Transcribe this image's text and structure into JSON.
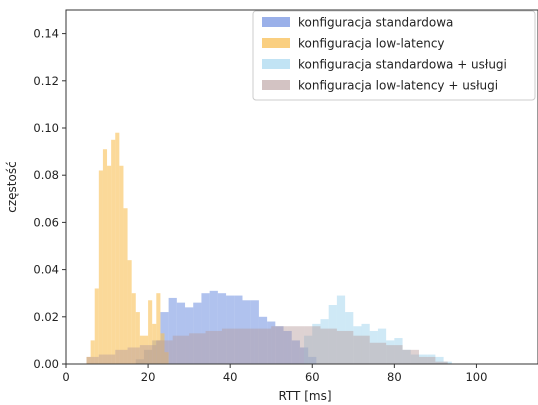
{
  "chart_data": {
    "type": "bar",
    "subtype": "histogram-overlay",
    "title": "",
    "xlabel": "RTT [ms]",
    "ylabel": "częstość",
    "xlim": [
      0,
      115
    ],
    "ylim": [
      0,
      0.15
    ],
    "xticks": [
      0,
      20,
      40,
      60,
      80,
      100
    ],
    "yticks": [
      0.0,
      0.02,
      0.04,
      0.06,
      0.08,
      0.1,
      0.12,
      0.14
    ],
    "xtick_labels": [
      "0",
      "20",
      "40",
      "60",
      "80",
      "100"
    ],
    "ytick_labels": [
      "0.00",
      "0.02",
      "0.04",
      "0.06",
      "0.08",
      "0.10",
      "0.12",
      "0.14"
    ],
    "grid": false,
    "legend_position": "top-right",
    "series": [
      {
        "name": "konfiguracja standardowa",
        "color": "#6f8fe0",
        "opacity": 0.55,
        "bins": [
          [
            17,
            19,
            0.002
          ],
          [
            19,
            21,
            0.006
          ],
          [
            21,
            23,
            0.01
          ],
          [
            23,
            25,
            0.022
          ],
          [
            25,
            27,
            0.028
          ],
          [
            27,
            29,
            0.026
          ],
          [
            29,
            31,
            0.024
          ],
          [
            31,
            33,
            0.026
          ],
          [
            33,
            35,
            0.03
          ],
          [
            35,
            37,
            0.031
          ],
          [
            37,
            39,
            0.03
          ],
          [
            39,
            41,
            0.029
          ],
          [
            41,
            43,
            0.029
          ],
          [
            43,
            45,
            0.027
          ],
          [
            45,
            47,
            0.027
          ],
          [
            47,
            49,
            0.02
          ],
          [
            49,
            51,
            0.018
          ],
          [
            51,
            53,
            0.016
          ],
          [
            53,
            55,
            0.014
          ],
          [
            55,
            57,
            0.01
          ],
          [
            57,
            59,
            0.007
          ],
          [
            59,
            61,
            0.003
          ]
        ]
      },
      {
        "name": "konfiguracja low-latency",
        "color": "#f8bf55",
        "opacity": 0.6,
        "bins": [
          [
            5,
            6,
            0.003
          ],
          [
            6,
            7,
            0.01
          ],
          [
            7,
            8,
            0.032
          ],
          [
            8,
            9,
            0.082
          ],
          [
            9,
            10,
            0.091
          ],
          [
            10,
            11,
            0.084
          ],
          [
            11,
            12,
            0.095
          ],
          [
            12,
            13,
            0.098
          ],
          [
            13,
            14,
            0.084
          ],
          [
            14,
            15,
            0.066
          ],
          [
            15,
            16,
            0.044
          ],
          [
            16,
            17,
            0.03
          ],
          [
            17,
            18,
            0.022
          ],
          [
            18,
            19,
            0.012
          ],
          [
            19,
            20,
            0.012
          ],
          [
            20,
            21,
            0.027
          ],
          [
            21,
            22,
            0.017
          ],
          [
            22,
            23,
            0.03
          ],
          [
            23,
            24,
            0.013
          ],
          [
            24,
            25,
            0.005
          ]
        ]
      },
      {
        "name": "konfiguracja standardowa + usługi",
        "color": "#9fd4ee",
        "opacity": 0.5,
        "bins": [
          [
            58,
            60,
            0.012
          ],
          [
            60,
            62,
            0.017
          ],
          [
            62,
            64,
            0.019
          ],
          [
            64,
            66,
            0.025
          ],
          [
            66,
            68,
            0.029
          ],
          [
            68,
            70,
            0.022
          ],
          [
            70,
            72,
            0.016
          ],
          [
            72,
            74,
            0.017
          ],
          [
            74,
            76,
            0.014
          ],
          [
            76,
            78,
            0.015
          ],
          [
            78,
            80,
            0.01
          ],
          [
            80,
            82,
            0.011
          ],
          [
            82,
            84,
            0.006
          ],
          [
            84,
            86,
            0.004
          ],
          [
            86,
            88,
            0.004
          ],
          [
            88,
            90,
            0.004
          ],
          [
            90,
            92,
            0.003
          ],
          [
            92,
            94,
            0.001
          ]
        ]
      },
      {
        "name": "konfiguracja low-latency + usługi",
        "color": "#b69b9b",
        "opacity": 0.45,
        "bins": [
          [
            5,
            8,
            0.003
          ],
          [
            8,
            12,
            0.004
          ],
          [
            12,
            15,
            0.006
          ],
          [
            15,
            18,
            0.007
          ],
          [
            18,
            22,
            0.008
          ],
          [
            22,
            26,
            0.01
          ],
          [
            26,
            30,
            0.012
          ],
          [
            30,
            34,
            0.013
          ],
          [
            34,
            38,
            0.014
          ],
          [
            38,
            42,
            0.015
          ],
          [
            42,
            46,
            0.015
          ],
          [
            46,
            50,
            0.015
          ],
          [
            50,
            54,
            0.016
          ],
          [
            54,
            58,
            0.016
          ],
          [
            58,
            62,
            0.016
          ],
          [
            62,
            66,
            0.015
          ],
          [
            66,
            70,
            0.014
          ],
          [
            70,
            74,
            0.012
          ],
          [
            74,
            78,
            0.009
          ],
          [
            78,
            82,
            0.008
          ],
          [
            82,
            86,
            0.006
          ],
          [
            86,
            90,
            0.003
          ],
          [
            90,
            93,
            0.001
          ]
        ]
      }
    ]
  }
}
